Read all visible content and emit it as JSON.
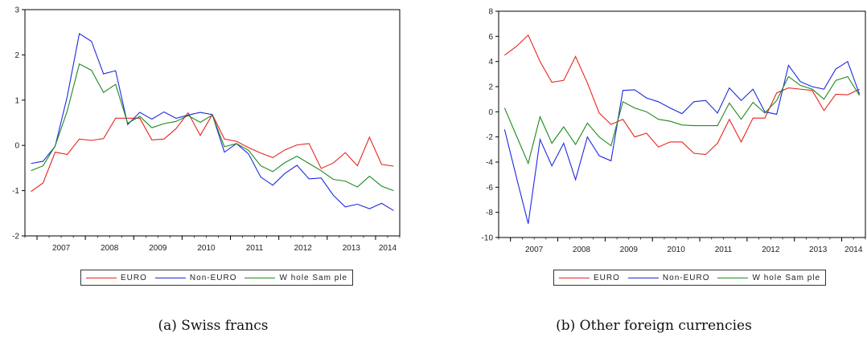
{
  "series_colors": {
    "EURO": "#e8241e",
    "Non-EURO": "#1d2ae0",
    "Whole Sample": "#1e8a1e"
  },
  "chart_data": [
    {
      "type": "line",
      "caption": "(a) Swiss francs",
      "x": [
        "2006Q4",
        "2007Q1",
        "2007Q2",
        "2007Q3",
        "2007Q4",
        "2008Q1",
        "2008Q2",
        "2008Q3",
        "2008Q4",
        "2009Q1",
        "2009Q2",
        "2009Q3",
        "2009Q4",
        "2010Q1",
        "2010Q2",
        "2010Q3",
        "2010Q4",
        "2011Q1",
        "2011Q2",
        "2011Q3",
        "2011Q4",
        "2012Q1",
        "2012Q2",
        "2012Q3",
        "2012Q4",
        "2013Q1",
        "2013Q2",
        "2013Q3",
        "2013Q4",
        "2014Q1",
        "2014Q2"
      ],
      "xtick_labels": [
        "2007",
        "2008",
        "2009",
        "2010",
        "2011",
        "2012",
        "2013",
        "2014"
      ],
      "ylim": [
        -2,
        3
      ],
      "yticks": [
        "-2",
        "-1",
        "0",
        "1",
        "2",
        "3"
      ],
      "series": [
        {
          "name": "EURO",
          "values": [
            -1.02,
            -0.83,
            -0.15,
            -0.2,
            0.14,
            0.11,
            0.15,
            0.6,
            0.6,
            0.6,
            0.12,
            0.14,
            0.37,
            0.72,
            0.22,
            0.68,
            0.14,
            0.09,
            -0.05,
            -0.17,
            -0.27,
            -0.1,
            0.01,
            0.04,
            -0.51,
            -0.39,
            -0.16,
            -0.45,
            0.18,
            -0.42,
            -0.46
          ]
        },
        {
          "name": "Non-EURO",
          "values": [
            -0.4,
            -0.35,
            -0.02,
            1.08,
            2.47,
            2.3,
            1.58,
            1.65,
            0.46,
            0.73,
            0.58,
            0.74,
            0.6,
            0.67,
            0.73,
            0.68,
            -0.15,
            0.04,
            -0.19,
            -0.7,
            -0.88,
            -0.62,
            -0.44,
            -0.74,
            -0.72,
            -1.1,
            -1.36,
            -1.3,
            -1.4,
            -1.28,
            -1.44
          ]
        },
        {
          "name": "Whole Sample",
          "values": [
            -0.56,
            -0.45,
            -0.01,
            0.76,
            1.8,
            1.66,
            1.17,
            1.35,
            0.49,
            0.64,
            0.39,
            0.48,
            0.53,
            0.66,
            0.51,
            0.67,
            -0.03,
            0.04,
            -0.11,
            -0.45,
            -0.58,
            -0.38,
            -0.24,
            -0.4,
            -0.56,
            -0.75,
            -0.79,
            -0.92,
            -0.68,
            -0.9,
            -1.0
          ]
        }
      ],
      "legend": [
        "EURO",
        "Non-EURO",
        "Whole Sample"
      ],
      "legend_labels": [
        "EURO",
        "Non-EURO",
        "W hole Sam ple"
      ],
      "legend_position": "bottom-center"
    },
    {
      "type": "line",
      "caption": "(b) Other foreign currencies",
      "x": [
        "2006Q4",
        "2007Q1",
        "2007Q2",
        "2007Q3",
        "2007Q4",
        "2008Q1",
        "2008Q2",
        "2008Q3",
        "2008Q4",
        "2009Q1",
        "2009Q2",
        "2009Q3",
        "2009Q4",
        "2010Q1",
        "2010Q2",
        "2010Q3",
        "2010Q4",
        "2011Q1",
        "2011Q2",
        "2011Q3",
        "2011Q4",
        "2012Q1",
        "2012Q2",
        "2012Q3",
        "2012Q4",
        "2013Q1",
        "2013Q2",
        "2013Q3",
        "2013Q4",
        "2014Q1",
        "2014Q2"
      ],
      "xtick_labels": [
        "2007",
        "2008",
        "2009",
        "2010",
        "2011",
        "2012",
        "2013",
        "2014"
      ],
      "ylim": [
        -10,
        8
      ],
      "yticks": [
        "-10",
        "-8",
        "-6",
        "-4",
        "-2",
        "0",
        "2",
        "4",
        "6",
        "8"
      ],
      "series": [
        {
          "name": "EURO",
          "values": [
            4.5,
            5.2,
            6.1,
            4.0,
            2.35,
            2.5,
            4.4,
            2.3,
            -0.1,
            -1.0,
            -0.6,
            -2.0,
            -1.7,
            -2.8,
            -2.4,
            -2.4,
            -3.3,
            -3.4,
            -2.5,
            -0.6,
            -2.4,
            -0.5,
            -0.5,
            1.5,
            1.9,
            1.8,
            1.7,
            0.1,
            1.4,
            1.35,
            1.8
          ]
        },
        {
          "name": "Non-EURO",
          "values": [
            -1.4,
            -5.2,
            -8.9,
            -2.2,
            -4.3,
            -2.5,
            -5.4,
            -2.0,
            -3.5,
            -3.9,
            1.7,
            1.75,
            1.1,
            0.8,
            0.3,
            -0.15,
            0.8,
            0.9,
            -0.1,
            1.9,
            0.9,
            1.8,
            0.0,
            -0.2,
            3.7,
            2.4,
            2.0,
            1.8,
            3.4,
            4.0,
            1.4
          ]
        },
        {
          "name": "Whole Sample",
          "values": [
            0.3,
            -1.9,
            -4.1,
            -0.4,
            -2.5,
            -1.2,
            -2.6,
            -0.9,
            -2.0,
            -2.7,
            0.8,
            0.3,
            0.0,
            -0.6,
            -0.75,
            -1.05,
            -1.1,
            -1.1,
            -1.1,
            0.7,
            -0.6,
            0.75,
            -0.1,
            0.9,
            2.8,
            2.1,
            1.8,
            1.0,
            2.5,
            2.8,
            1.3
          ]
        }
      ],
      "legend": [
        "EURO",
        "Non-EURO",
        "Whole Sample"
      ],
      "legend_labels": [
        "EURO",
        "Non-EURO",
        "W hole Sam ple"
      ],
      "legend_position": "bottom-center"
    }
  ]
}
